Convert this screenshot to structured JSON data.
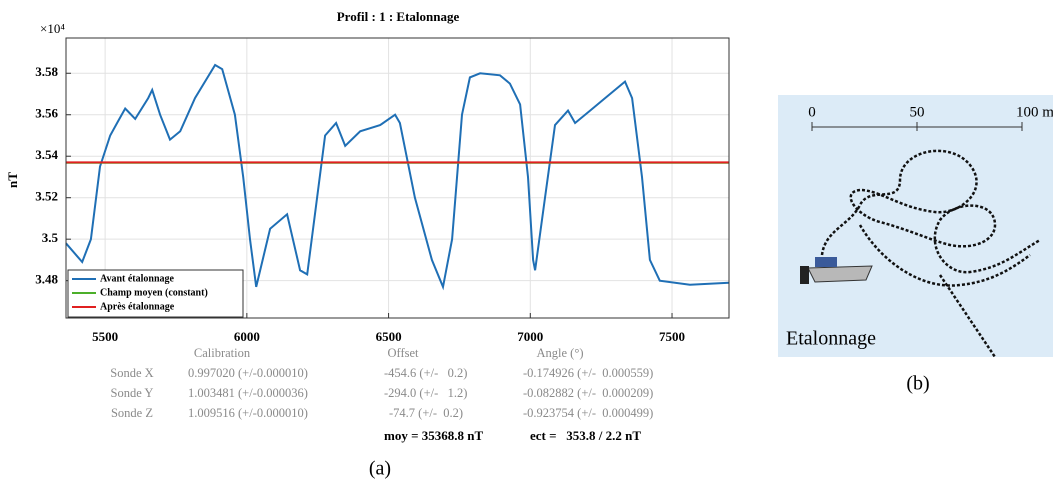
{
  "chart_data": {
    "type": "line",
    "title": "Profil : 1 : Etalonnage",
    "y_label": "nT",
    "y_scale_label": "×10⁴",
    "xlim": [
      5362,
      7701
    ],
    "xticks": [
      5500,
      6000,
      6500,
      7000,
      7500
    ],
    "ylim": [
      3.462,
      3.597
    ],
    "yticks": [
      3.48,
      3.5,
      3.52,
      3.54,
      3.56,
      3.58
    ],
    "grid": true,
    "legend": "lower left",
    "series": [
      {
        "name": "Avant étalonnage",
        "color": "#1f6fb5",
        "x": [
          5362,
          5400,
          5419,
          5450,
          5482,
          5518,
          5546,
          5571,
          5606,
          5652,
          5666,
          5694,
          5729,
          5765,
          5817,
          5888,
          5913,
          5958,
          5987,
          6011,
          6033,
          6082,
          6142,
          6188,
          6213,
          6276,
          6315,
          6347,
          6400,
          6470,
          6523,
          6540,
          6593,
          6653,
          6692,
          6724,
          6759,
          6787,
          6823,
          6893,
          6928,
          6964,
          6992,
          7010,
          7017,
          7052,
          7087,
          7133,
          7158,
          7211,
          7264,
          7334,
          7359,
          7394,
          7422,
          7457,
          7563,
          7701
        ],
        "values": [
          3.498,
          3.492,
          3.489,
          3.5,
          3.535,
          3.55,
          3.557,
          3.563,
          3.558,
          3.568,
          3.572,
          3.56,
          3.548,
          3.552,
          3.568,
          3.584,
          3.582,
          3.56,
          3.53,
          3.5,
          3.477,
          3.505,
          3.512,
          3.485,
          3.483,
          3.55,
          3.556,
          3.545,
          3.552,
          3.555,
          3.56,
          3.556,
          3.52,
          3.49,
          3.477,
          3.5,
          3.56,
          3.578,
          3.58,
          3.579,
          3.575,
          3.565,
          3.53,
          3.49,
          3.485,
          3.52,
          3.555,
          3.562,
          3.556,
          3.562,
          3.568,
          3.576,
          3.568,
          3.53,
          3.49,
          3.48,
          3.478,
          3.479
        ]
      },
      {
        "name": "Champ moyen (constant)",
        "color": "#4caf2a",
        "x": [
          5362,
          7701
        ],
        "values": [
          3.5369,
          3.5369
        ]
      },
      {
        "name": "Après étalonnage",
        "color": "#e02020",
        "x": [
          5362,
          7701
        ],
        "values": [
          3.537,
          3.537
        ]
      }
    ]
  },
  "table": {
    "header": [
      "Calibration",
      "Offset",
      "Angle (°)"
    ],
    "rows": [
      [
        "Sonde X",
        "0.997020 (+/-0.000010)",
        "-454.6 (+/-   0.2)",
        "-0.174926 (+/-  0.000559)"
      ],
      [
        "Sonde Y",
        "1.003481 (+/-0.000036)",
        "-294.0 (+/-   1.2)",
        "-0.082882 (+/-  0.000209)"
      ],
      [
        "Sonde Z",
        "1.009516 (+/-0.000010)",
        "-74.7 (+/-  0.2)",
        "-0.923754 (+/-  0.000499)"
      ]
    ],
    "summary": [
      "moy = 35368.8 nT",
      "ect =   353.8 / 2.2 nT"
    ]
  },
  "caption_a": "(a)",
  "panel_b": {
    "scale_labels": [
      "0",
      "50",
      "100 m"
    ],
    "label": "Etalonnage",
    "caption": "(b)"
  }
}
